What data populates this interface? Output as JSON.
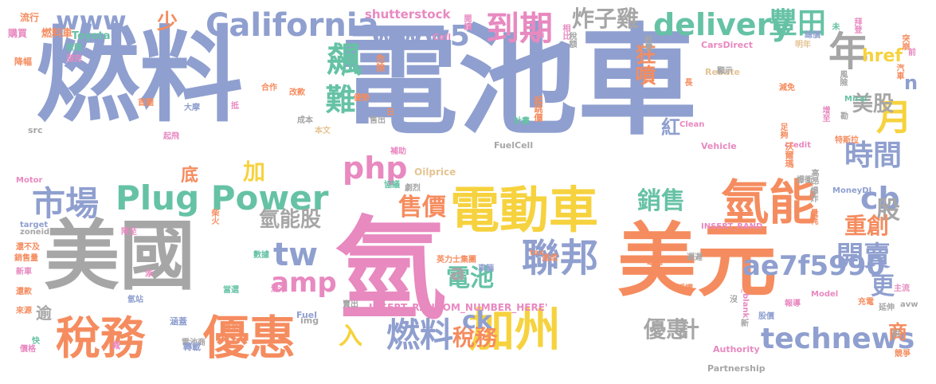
{
  "palette": {
    "blue": "#8f9fcf",
    "orange": "#f58c5f",
    "pink": "#e889c0",
    "gray": "#a6a6a6",
    "green": "#66c2a5",
    "yellow": "#f6d23e",
    "sand": "#e5c494"
  },
  "words": [
    {
      "text": "電池車",
      "color": "blue"
    },
    {
      "text": "燃料",
      "color": "blue"
    },
    {
      "text": "美國",
      "color": "gray"
    },
    {
      "text": "氫",
      "color": "pink"
    },
    {
      "text": "美元",
      "color": "orange"
    },
    {
      "text": "電動車",
      "color": "yellow"
    },
    {
      "text": "優惠",
      "color": "orange"
    },
    {
      "text": "稅務",
      "color": "orange"
    },
    {
      "text": "加州",
      "color": "yellow"
    },
    {
      "text": "聯邦",
      "color": "blue"
    },
    {
      "text": "氫能",
      "color": "orange"
    },
    {
      "text": "Plug Power",
      "color": "green"
    },
    {
      "text": "technews",
      "color": "blue"
    },
    {
      "text": "California",
      "color": "blue"
    },
    {
      "text": "www5",
      "color": "blue"
    },
    {
      "text": "delivery",
      "color": "green"
    },
    {
      "text": "www",
      "color": "blue"
    },
    {
      "text": "到期",
      "color": "pink"
    },
    {
      "text": "燃料",
      "color": "blue"
    },
    {
      "text": "ae7f5990",
      "color": "blue"
    },
    {
      "text": "市場",
      "color": "blue"
    },
    {
      "text": "售價",
      "color": "orange"
    },
    {
      "text": "銷售",
      "color": "green"
    },
    {
      "text": "amp",
      "color": "pink"
    },
    {
      "text": "php",
      "color": "pink"
    },
    {
      "text": "tw",
      "color": "blue"
    },
    {
      "text": "時間",
      "color": "blue"
    },
    {
      "text": "開賣",
      "color": "blue"
    },
    {
      "text": "豐田",
      "color": "green"
    },
    {
      "text": "年",
      "color": "gray"
    },
    {
      "text": "月",
      "color": "yellow"
    },
    {
      "text": "cb",
      "color": "blue"
    },
    {
      "text": "股",
      "color": "gray"
    },
    {
      "text": "飆",
      "color": "green"
    },
    {
      "text": "難",
      "color": "green"
    },
    {
      "text": "電池",
      "color": "green"
    },
    {
      "text": "稅務",
      "color": "orange"
    },
    {
      "text": "優惠",
      "color": "gray"
    },
    {
      "text": "ck",
      "color": "blue"
    },
    {
      "text": "計",
      "color": "gray"
    },
    {
      "text": "入",
      "color": "yellow"
    },
    {
      "text": "炸子雞",
      "color": "gray"
    },
    {
      "text": "狂噴",
      "color": "orange"
    },
    {
      "text": "href",
      "color": "yellow"
    },
    {
      "text": "美股",
      "color": "gray"
    },
    {
      "text": "氫能股",
      "color": "gray"
    },
    {
      "text": "加",
      "color": "yellow"
    },
    {
      "text": "底",
      "color": "orange"
    },
    {
      "text": "紅",
      "color": "blue"
    },
    {
      "text": "重創",
      "color": "orange"
    },
    {
      "text": "更",
      "color": "blue"
    },
    {
      "text": "少",
      "color": "orange"
    },
    {
      "text": "逾",
      "color": "gray"
    },
    {
      "text": "商",
      "color": "orange"
    },
    {
      "text": "n",
      "color": "blue"
    },
    {
      "text": "a",
      "color": "gray"
    },
    {
      "text": "shutterstock",
      "color": "pink"
    },
    {
      "text": "燃料車",
      "color": "orange"
    },
    {
      "text": "Toyota",
      "color": "green"
    },
    {
      "text": "流行",
      "color": "orange"
    },
    {
      "text": "購買",
      "color": "pink"
    },
    {
      "text": "降幅",
      "color": "orange"
    },
    {
      "text": "新聞",
      "color": "green"
    },
    {
      "text": "漲完",
      "color": "pink"
    },
    {
      "text": "INSERT_RANDOM_NUMBER_HERE'",
      "color": "pink"
    },
    {
      "text": "INSERT_RAND",
      "color": "pink"
    },
    {
      "text": "FuelCell",
      "color": "gray"
    },
    {
      "text": "CarsDirect",
      "color": "pink"
    },
    {
      "text": "Rebate",
      "color": "sand"
    },
    {
      "text": "Mirai",
      "color": "green"
    },
    {
      "text": "Clean",
      "color": "pink"
    },
    {
      "text": "Vehicle",
      "color": "pink"
    },
    {
      "text": "credit",
      "color": "pink"
    },
    {
      "text": "MoneyDJ",
      "color": "blue"
    },
    {
      "text": "Motor",
      "color": "pink"
    },
    {
      "text": "Oilprice",
      "color": "sand"
    },
    {
      "text": "target",
      "color": "blue"
    },
    {
      "text": "zoneid",
      "color": "gray"
    },
    {
      "text": "Fuel",
      "color": "blue"
    },
    {
      "text": "tax",
      "color": "orange"
    },
    {
      "text": "Cell",
      "color": "pink"
    },
    {
      "text": "src",
      "color": "gray"
    },
    {
      "text": "img",
      "color": "gray"
    },
    {
      "text": "Authority",
      "color": "pink"
    },
    {
      "text": "Partnership",
      "color": "gray"
    },
    {
      "text": "Model",
      "color": "pink"
    },
    {
      "text": "avw",
      "color": "gray"
    },
    {
      "text": "_blank'",
      "color": "pink"
    },
    {
      "text": "英力士集團",
      "color": "orange"
    },
    {
      "text": "電池商",
      "color": "gray"
    },
    {
      "text": "特斯拉",
      "color": "orange"
    },
    {
      "text": "沃爾瑪",
      "color": "orange"
    },
    {
      "text": "起跳價",
      "color": "orange"
    },
    {
      "text": "危險",
      "color": "orange"
    },
    {
      "text": "閱讀",
      "color": "pink"
    },
    {
      "text": "相比",
      "color": "pink"
    },
    {
      "text": "稅額",
      "color": "gray"
    },
    {
      "text": "耗費",
      "color": "gray"
    },
    {
      "text": "明年",
      "color": "sand"
    },
    {
      "text": "突崩",
      "color": "orange"
    },
    {
      "text": "汽車",
      "color": "orange"
    },
    {
      "text": "前",
      "color": "pink"
    },
    {
      "text": "總價",
      "color": "blue"
    },
    {
      "text": "拜登",
      "color": "pink"
    },
    {
      "text": "未",
      "color": "green"
    },
    {
      "text": "合作",
      "color": "orange"
    },
    {
      "text": "改款",
      "color": "orange"
    },
    {
      "text": "首圖",
      "color": "orange"
    },
    {
      "text": "大摩",
      "color": "blue"
    },
    {
      "text": "成本",
      "color": "gray"
    },
    {
      "text": "優勢",
      "color": "orange"
    },
    {
      "text": "售出",
      "color": "gray"
    },
    {
      "text": "計畫",
      "color": "green"
    },
    {
      "text": "補助",
      "color": "pink"
    },
    {
      "text": "協議",
      "color": "green"
    },
    {
      "text": "劇烈",
      "color": "gray"
    },
    {
      "text": "本文",
      "color": "sand"
    },
    {
      "text": "起飛",
      "color": "pink"
    },
    {
      "text": "抵",
      "color": "pink"
    },
    {
      "text": "增至",
      "color": "pink"
    },
    {
      "text": "足夠",
      "color": "orange"
    },
    {
      "text": "高昂",
      "color": "gray"
    },
    {
      "text": "爆衝",
      "color": "gray"
    },
    {
      "text": "爆炸",
      "color": "gray"
    },
    {
      "text": "量耗",
      "color": "orange"
    },
    {
      "text": "風險",
      "color": "gray"
    },
    {
      "text": "減免",
      "color": "orange"
    },
    {
      "text": "顯示",
      "color": "gray"
    },
    {
      "text": "長",
      "color": "orange"
    },
    {
      "text": "柴火",
      "color": "orange"
    },
    {
      "text": "降至",
      "color": "pink"
    },
    {
      "text": "還不及",
      "color": "orange"
    },
    {
      "text": "銷售量",
      "color": "orange"
    },
    {
      "text": "新車",
      "color": "pink"
    },
    {
      "text": "還款",
      "color": "orange"
    },
    {
      "text": "來源",
      "color": "orange"
    },
    {
      "text": "價格",
      "color": "pink"
    },
    {
      "text": "快",
      "color": "green"
    },
    {
      "text": "減",
      "color": "pink"
    },
    {
      "text": "轉載",
      "color": "blue"
    },
    {
      "text": "涵蓋",
      "color": "blue"
    },
    {
      "text": "消息",
      "color": "orange"
    },
    {
      "text": "清淨",
      "color": "pink"
    },
    {
      "text": "當選",
      "color": "green"
    },
    {
      "text": "數據",
      "color": "green"
    },
    {
      "text": "氫站",
      "color": "blue"
    },
    {
      "text": "添",
      "color": "pink"
    },
    {
      "text": "賣出",
      "color": "gray"
    },
    {
      "text": "報導",
      "color": "pink"
    },
    {
      "text": "達成",
      "color": "orange"
    },
    {
      "text": "缺點",
      "color": "orange"
    },
    {
      "text": "遲遲",
      "color": "gray"
    },
    {
      "text": "授權",
      "color": "orange"
    },
    {
      "text": "股價",
      "color": "blue"
    },
    {
      "text": "充電",
      "color": "orange"
    },
    {
      "text": "延伸",
      "color": "gray"
    },
    {
      "text": "主流",
      "color": "pink"
    },
    {
      "text": "說",
      "color": "gray"
    },
    {
      "text": "競爭",
      "color": "orange"
    },
    {
      "text": "新",
      "color": "gray"
    },
    {
      "text": "沒",
      "color": "gray"
    },
    {
      "text": "日",
      "color": "orange"
    },
    {
      "text": "車輛",
      "color": "blue"
    },
    {
      "text": "輛",
      "color": "pink"
    },
    {
      "text": "勘",
      "color": "gray"
    }
  ]
}
